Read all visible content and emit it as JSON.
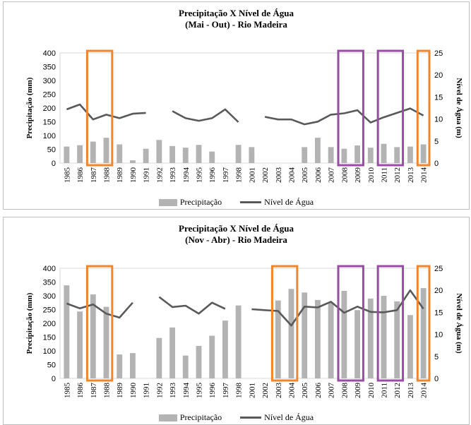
{
  "colors": {
    "bar": "#b3b3b3",
    "line": "#595959",
    "orange": "#f0862c",
    "purple": "#9b4aa8"
  },
  "legend": {
    "bar_label": "Precipitação",
    "line_label": "Nível de Água"
  },
  "chart_data": [
    {
      "type": "bar+line",
      "title": "Precipitação  X Nível de Água",
      "subtitle": "(Mai - Out)  - Rio Madeira",
      "ylabel": "Precipitação (mm)",
      "y2label": "Nível de Água (m)",
      "ylim": [
        0,
        400
      ],
      "y2lim": [
        0,
        25
      ],
      "yticks": [
        "0",
        "50",
        "100",
        "150",
        "200",
        "250",
        "300",
        "350",
        "400"
      ],
      "y2ticks": [
        "0",
        "5",
        "10",
        "15",
        "20",
        "25"
      ],
      "categories": [
        "1985",
        "1986",
        "1987",
        "1988",
        "1989",
        "1990",
        "1991",
        "1992",
        "1993",
        "1994",
        "1995",
        "1996",
        "1997",
        "1998",
        "2001",
        "2002",
        "2003",
        "2004",
        "2005",
        "2006",
        "2007",
        "2008",
        "2009",
        "2010",
        "2011",
        "2012",
        "2013",
        "2014"
      ],
      "series": [
        {
          "name": "Precipitação",
          "kind": "bar",
          "values": [
            60,
            65,
            78,
            92,
            68,
            10,
            52,
            84,
            62,
            56,
            66,
            42,
            null,
            66,
            58,
            null,
            null,
            null,
            58,
            92,
            58,
            52,
            64,
            56,
            70,
            58,
            60,
            68
          ]
        },
        {
          "name": "Nível de Água",
          "kind": "line",
          "values": [
            12.2,
            13.3,
            9.9,
            11.0,
            10.2,
            11.2,
            11.4,
            null,
            11.8,
            10.2,
            9.6,
            10.2,
            12.2,
            9.3,
            null,
            10.5,
            9.9,
            9.9,
            8.8,
            9.4,
            11.0,
            11.3,
            12.0,
            9.2,
            10.4,
            11.4,
            12.4,
            10.8
          ]
        }
      ],
      "highlights": [
        {
          "from": "1987",
          "to": "1988",
          "color": "orange"
        },
        {
          "from": "2008",
          "to": "2009",
          "color": "purple"
        },
        {
          "from": "2011",
          "to": "2012",
          "color": "purple"
        },
        {
          "from": "2014",
          "to": "2014",
          "color": "orange"
        }
      ]
    },
    {
      "type": "bar+line",
      "title": "Precipitação  X Nível de Água",
      "subtitle": "(Nov - Abr)  - Rio Madeira",
      "ylabel": "Precipitação (mm)",
      "y2label": "Nível de Água (m)",
      "ylim": [
        0,
        400
      ],
      "y2lim": [
        0,
        25
      ],
      "yticks": [
        "0",
        "50",
        "100",
        "150",
        "200",
        "250",
        "300",
        "350",
        "400"
      ],
      "y2ticks": [
        "0",
        "5",
        "10",
        "15",
        "20",
        "25"
      ],
      "categories": [
        "1985",
        "1986",
        "1987",
        "1988",
        "1989",
        "1990",
        "1991",
        "1992",
        "1993",
        "1994",
        "1995",
        "1996",
        "1997",
        "1998",
        "2001",
        "2002",
        "2003",
        "2004",
        "2005",
        "2006",
        "2007",
        "2008",
        "2009",
        "2010",
        "2011",
        "2012",
        "2013",
        "2014"
      ],
      "series": [
        {
          "name": "Precipitação",
          "kind": "bar",
          "values": [
            338,
            243,
            305,
            260,
            87,
            92,
            null,
            147,
            185,
            83,
            118,
            155,
            210,
            265,
            null,
            null,
            283,
            325,
            312,
            285,
            275,
            318,
            248,
            290,
            300,
            280,
            230,
            328
          ]
        },
        {
          "name": "Nível de Água",
          "kind": "line",
          "values": [
            17.0,
            15.9,
            16.8,
            14.7,
            13.8,
            17.2,
            null,
            18.5,
            16.2,
            16.5,
            14.7,
            17.2,
            15.8,
            null,
            15.7,
            15.5,
            15.3,
            12.0,
            16.3,
            16.1,
            17.4,
            14.9,
            16.3,
            15.1,
            15.0,
            15.5,
            20.0,
            15.8
          ]
        }
      ],
      "highlights": [
        {
          "from": "1987",
          "to": "1988",
          "color": "orange"
        },
        {
          "from": "2003",
          "to": "2004",
          "color": "orange"
        },
        {
          "from": "2008",
          "to": "2009",
          "color": "purple"
        },
        {
          "from": "2011",
          "to": "2012",
          "color": "purple"
        },
        {
          "from": "2014",
          "to": "2014",
          "color": "orange"
        }
      ]
    }
  ]
}
